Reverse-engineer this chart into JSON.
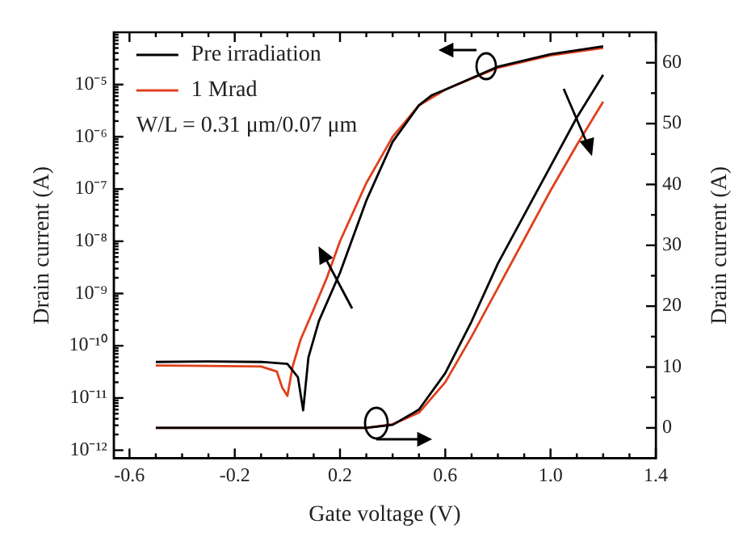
{
  "chart_data": {
    "type": "line",
    "xlabel": "Gate voltage (V)",
    "ylabel": "Drain current (A)",
    "y2label": "Drain current (A)",
    "xlim": [
      -0.66,
      1.4
    ],
    "xticks": [
      -0.6,
      {
        "value": -0.5,
        "label": null
      },
      {
        "value": -0.4,
        "label": null
      },
      {
        "value": -0.3,
        "label": null
      },
      -0.2,
      {
        "value": -0.1,
        "label": null
      },
      {
        "value": 0,
        "label": null
      },
      {
        "value": 0.1,
        "label": null
      },
      0.2,
      {
        "value": 0.3,
        "label": null
      },
      {
        "value": 0.4,
        "label": null
      },
      {
        "value": 0.5,
        "label": null
      },
      0.6,
      {
        "value": 0.7,
        "label": null
      },
      {
        "value": 0.8,
        "label": null
      },
      {
        "value": 0.9,
        "label": null
      },
      {
        "value": 1,
        "label": "1.0"
      },
      {
        "value": 1.1,
        "label": null
      },
      {
        "value": 1.2,
        "label": null
      },
      {
        "value": 1.3,
        "label": null
      },
      1.4
    ],
    "log": "y",
    "ylim": [
      7e-13,
      0.0001
    ],
    "yticks": [
      {
        "value": 1e-12,
        "label": "10⁻¹²"
      },
      {
        "value": 2e-12,
        "label": null
      },
      {
        "value": 3e-12,
        "label": null
      },
      {
        "value": 4e-12,
        "label": null
      },
      {
        "value": 5e-12,
        "label": null
      },
      {
        "value": 6e-12,
        "label": null
      },
      {
        "value": 7e-12,
        "label": null
      },
      {
        "value": 8e-12,
        "label": null
      },
      {
        "value": 9e-12,
        "label": null
      },
      {
        "value": 1e-11,
        "label": "10⁻¹¹"
      },
      {
        "value": 2e-11,
        "label": null
      },
      {
        "value": 3e-11,
        "label": null
      },
      {
        "value": 4e-11,
        "label": null
      },
      {
        "value": 5e-11,
        "label": null
      },
      {
        "value": 6e-11,
        "label": null
      },
      {
        "value": 7e-11,
        "label": null
      },
      {
        "value": 8e-11,
        "label": null
      },
      {
        "value": 9e-11,
        "label": null
      },
      {
        "value": 1e-10,
        "label": "10⁻¹⁰"
      },
      {
        "value": 2e-10,
        "label": null
      },
      {
        "value": 3e-10,
        "label": null
      },
      {
        "value": 4e-10,
        "label": null
      },
      {
        "value": 5e-10,
        "label": null
      },
      {
        "value": 6e-10,
        "label": null
      },
      {
        "value": 7e-10,
        "label": null
      },
      {
        "value": 8e-10,
        "label": null
      },
      {
        "value": 9e-10,
        "label": null
      },
      {
        "value": 1e-09,
        "label": "10⁻⁹"
      },
      {
        "value": 2e-09,
        "label": null
      },
      {
        "value": 3e-09,
        "label": null
      },
      {
        "value": 4e-09,
        "label": null
      },
      {
        "value": 5e-09,
        "label": null
      },
      {
        "value": 6e-09,
        "label": null
      },
      {
        "value": 7e-09,
        "label": null
      },
      {
        "value": 8e-09,
        "label": null
      },
      {
        "value": 9e-09,
        "label": null
      },
      {
        "value": 1e-08,
        "label": "10⁻⁸"
      },
      {
        "value": 2e-08,
        "label": null
      },
      {
        "value": 3e-08,
        "label": null
      },
      {
        "value": 4e-08,
        "label": null
      },
      {
        "value": 5e-08,
        "label": null
      },
      {
        "value": 6e-08,
        "label": null
      },
      {
        "value": 7e-08,
        "label": null
      },
      {
        "value": 8e-08,
        "label": null
      },
      {
        "value": 9e-08,
        "label": null
      },
      {
        "value": 1e-07,
        "label": "10⁻⁷"
      },
      {
        "value": 2e-07,
        "label": null
      },
      {
        "value": 3e-07,
        "label": null
      },
      {
        "value": 4e-07,
        "label": null
      },
      {
        "value": 5e-07,
        "label": null
      },
      {
        "value": 6e-07,
        "label": null
      },
      {
        "value": 7e-07,
        "label": null
      },
      {
        "value": 8e-07,
        "label": null
      },
      {
        "value": 9e-07,
        "label": null
      },
      {
        "value": 1e-06,
        "label": "10⁻⁶"
      },
      {
        "value": 2e-06,
        "label": null
      },
      {
        "value": 3e-06,
        "label": null
      },
      {
        "value": 4e-06,
        "label": null
      },
      {
        "value": 5e-06,
        "label": null
      },
      {
        "value": 6e-06,
        "label": null
      },
      {
        "value": 7e-06,
        "label": null
      },
      {
        "value": 8e-06,
        "label": null
      },
      {
        "value": 9e-06,
        "label": null
      },
      {
        "value": 1e-05,
        "label": "10⁻⁵"
      },
      {
        "value": 2e-05,
        "label": null
      },
      {
        "value": 3e-05,
        "label": null
      },
      {
        "value": 4e-05,
        "label": null
      },
      {
        "value": 5e-05,
        "label": null
      },
      {
        "value": 6e-05,
        "label": null
      },
      {
        "value": 7e-05,
        "label": null
      },
      {
        "value": 8e-05,
        "label": null
      },
      {
        "value": 9e-05,
        "label": null
      }
    ],
    "y2lim": [
      -5,
      65
    ],
    "y2ticks": [
      0,
      {
        "value": 5,
        "label": null
      },
      10,
      {
        "value": 15,
        "label": null
      },
      20,
      {
        "value": 25,
        "label": null
      },
      30,
      {
        "value": 35,
        "label": null
      },
      40,
      {
        "value": 45,
        "label": null
      },
      50,
      {
        "value": 55,
        "label": null
      },
      60
    ],
    "grid": false,
    "legend": "top left",
    "marker": "none",
    "line_style": "solid",
    "annotations": [
      "W/L = 0.31 μm/0.07 μm"
    ],
    "series": [
      {
        "name": "Pre irradiation",
        "color": "#000000",
        "x": [
          -0.5,
          -0.3,
          -0.1,
          0.0,
          0.04,
          0.06,
          0.08,
          0.12,
          0.2,
          0.3,
          0.4,
          0.5,
          0.55,
          0.6,
          0.8,
          1.0,
          1.2
        ],
        "values": [
          4.9e-11,
          5e-11,
          4.9e-11,
          4.5e-11,
          2.5e-11,
          5.8e-12,
          6e-11,
          3e-10,
          2.5e-09,
          6e-08,
          8e-07,
          4e-06,
          6.3e-06,
          8e-06,
          2.2e-05,
          3.8e-05,
          5.4e-05
        ]
      },
      {
        "name": "1 Mrad",
        "color": "#e0401c",
        "x": [
          -0.5,
          -0.1,
          -0.04,
          -0.02,
          0.0,
          0.02,
          0.05,
          0.1,
          0.15,
          0.2,
          0.3,
          0.4,
          0.5,
          0.6,
          0.8,
          1.0,
          1.2
        ],
        "values": [
          4.2e-11,
          4e-11,
          3.2e-11,
          1.6e-11,
          1.1e-11,
          4e-11,
          1.3e-10,
          5e-10,
          2e-09,
          1e-08,
          1.3e-07,
          1e-06,
          4e-06,
          8e-06,
          2.1e-05,
          3.6e-05,
          5e-05
        ]
      },
      {
        "color": "#000000",
        "axis": "y2",
        "x": [
          -0.5,
          0.3,
          0.4,
          0.5,
          0.6,
          0.7,
          0.8,
          0.9,
          1.0,
          1.1,
          1.2
        ],
        "values": [
          0,
          0,
          0.5,
          3,
          9,
          17.5,
          27,
          35,
          43,
          51,
          58
        ]
      },
      {
        "color": "#e0401c",
        "axis": "y2",
        "x": [
          -0.5,
          0.3,
          0.4,
          0.5,
          0.6,
          0.7,
          0.8,
          0.9,
          1.0,
          1.1,
          1.2
        ],
        "values": [
          0,
          0,
          0.6,
          2.5,
          7.5,
          15,
          23,
          31,
          39,
          46.5,
          53.6
        ]
      }
    ]
  }
}
